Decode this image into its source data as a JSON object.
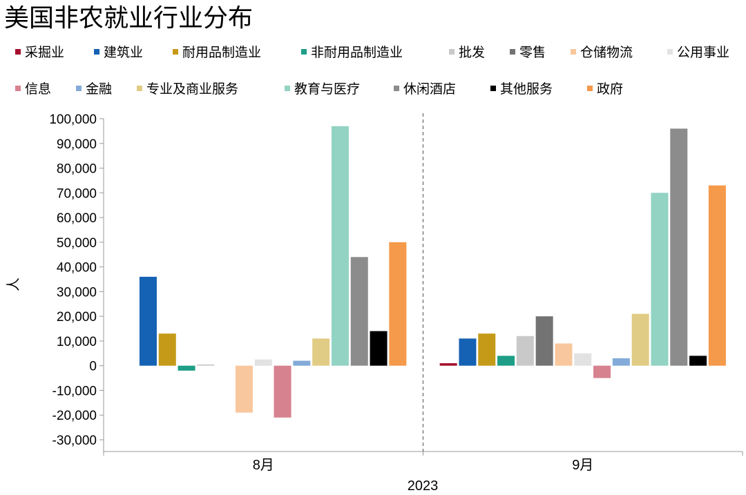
{
  "chart_data": {
    "type": "bar",
    "title": "美国非农就业行业分布",
    "ylabel": "人",
    "xlabel": "2023",
    "categories": [
      "8月",
      "9月"
    ],
    "ylim": [
      -30000,
      100000
    ],
    "ytick_step": 10000,
    "grid": false,
    "legend_position": "top",
    "series": [
      {
        "name": "采掘业",
        "color": "#A50F2B",
        "values": [
          0,
          1000
        ]
      },
      {
        "name": "建筑业",
        "color": "#1561B3",
        "values": [
          36000,
          11000
        ]
      },
      {
        "name": "耐用品制造业",
        "color": "#C59A18",
        "values": [
          13000,
          13000
        ]
      },
      {
        "name": "非耐用品制造业",
        "color": "#1E9E86",
        "values": [
          -2000,
          4000
        ]
      },
      {
        "name": "批发",
        "color": "#C9C9C9",
        "values": [
          500,
          12000
        ]
      },
      {
        "name": "零售",
        "color": "#737373",
        "values": [
          0,
          20000
        ]
      },
      {
        "name": "仓储物流",
        "color": "#F9C79D",
        "values": [
          -19000,
          9000
        ]
      },
      {
        "name": "公用事业",
        "color": "#E2E2E2",
        "values": [
          2500,
          5000
        ]
      },
      {
        "name": "信息",
        "color": "#D7828F",
        "values": [
          -21000,
          -5000
        ]
      },
      {
        "name": "金融",
        "color": "#83ABD9",
        "values": [
          2000,
          3000
        ]
      },
      {
        "name": "专业及商业服务",
        "color": "#E1CC85",
        "values": [
          11000,
          21000
        ]
      },
      {
        "name": "教育与医疗",
        "color": "#92D3C3",
        "values": [
          97000,
          70000
        ]
      },
      {
        "name": "休闲酒店",
        "color": "#8C8C8C",
        "values": [
          44000,
          96000
        ]
      },
      {
        "name": "其他服务",
        "color": "#000000",
        "values": [
          14000,
          4000
        ]
      },
      {
        "name": "政府",
        "color": "#F5994A",
        "values": [
          50000,
          73000
        ]
      }
    ]
  }
}
